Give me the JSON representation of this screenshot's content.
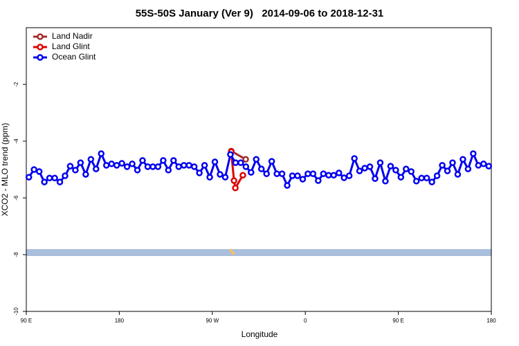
{
  "chart_data": {
    "type": "line",
    "title": "55S-50S January (Ver 9)   2014-09-06 to 2018-12-31",
    "x_label": "Longitude",
    "y_label": "XCO2 - MLO trend (ppm)",
    "xlim": [
      90,
      540
    ],
    "ylim": [
      -10,
      0
    ],
    "xticks": [
      {
        "value": 90,
        "label": "90 E"
      },
      180,
      {
        "value": 270,
        "label": "90 W"
      },
      {
        "value": 360,
        "label": "0"
      },
      {
        "value": 450,
        "label": "90 E"
      },
      {
        "value": 540,
        "label": "180"
      }
    ],
    "yticks": [
      -10,
      -8,
      -6,
      -4,
      -2
    ],
    "legend": "top-left",
    "series": [
      {
        "name": "Land Nadir",
        "color": "#a52a2a",
        "x": [
          288.3,
          302.3
        ],
        "values": [
          -4.35,
          -4.64
        ]
      },
      {
        "name": "Land Glint",
        "color": "#e00000",
        "x": [
          288.3,
          291,
          292.3,
          299.6
        ],
        "values": [
          -4.37,
          -5.39,
          -5.65,
          -5.2
        ]
      },
      {
        "name": "Ocean Glint",
        "color": "#0000ee",
        "x": [
          92.5,
          97.5,
          102.5,
          107.5,
          112.5,
          117.5,
          122.5,
          127.5,
          132.5,
          137.5,
          142.5,
          147.5,
          152.5,
          157.5,
          162.5,
          167.5,
          172.5,
          177.5,
          182.5,
          187.5,
          192.5,
          197.5,
          202.5,
          207.5,
          212.5,
          217.5,
          222.5,
          227.5,
          232.5,
          237.5,
          242.5,
          247.5,
          252.5,
          257.5,
          262.5,
          267.5,
          272.5,
          277.5,
          282.5,
          287.5,
          292.5,
          297.5,
          302.5,
          307.5,
          312.5,
          317.5,
          322.5,
          327.5,
          332.5,
          337.5,
          342.5,
          347.5,
          352.5,
          357.5,
          362.5,
          367.5,
          372.5,
          377.5,
          382.5,
          387.5,
          392.5,
          397.5,
          402.5,
          407.5,
          412.5,
          417.5,
          422.5,
          427.5,
          432.5,
          437.5,
          442.5,
          447.5,
          452.5,
          457.5,
          462.5,
          467.5,
          472.5,
          477.5,
          482.5,
          487.5,
          492.5,
          497.5,
          502.5,
          507.5,
          512.5,
          517.5,
          522.5,
          527.5,
          532.5,
          537.5
        ],
        "values": [
          -5.27,
          -5.0,
          -5.07,
          -5.44,
          -5.3,
          -5.3,
          -5.44,
          -5.22,
          -4.88,
          -5.02,
          -4.76,
          -5.17,
          -4.64,
          -4.98,
          -4.44,
          -4.85,
          -4.8,
          -4.85,
          -4.78,
          -4.9,
          -4.8,
          -5.02,
          -4.68,
          -4.9,
          -4.9,
          -4.9,
          -4.68,
          -5.02,
          -4.68,
          -4.9,
          -4.85,
          -4.85,
          -4.9,
          -5.12,
          -4.85,
          -5.27,
          -4.73,
          -5.17,
          -5.27,
          -4.47,
          -4.76,
          -4.76,
          -4.9,
          -5.1,
          -4.64,
          -4.98,
          -5.15,
          -4.71,
          -5.15,
          -5.15,
          -5.56,
          -5.22,
          -5.22,
          -5.34,
          -5.15,
          -5.15,
          -5.39,
          -5.15,
          -5.2,
          -5.2,
          -5.12,
          -5.29,
          -5.22,
          -4.61,
          -5.05,
          -4.95,
          -4.9,
          -5.32,
          -4.76,
          -5.41,
          -4.88,
          -5.02,
          -5.27,
          -4.98,
          -5.07,
          -5.41,
          -5.3,
          -5.3,
          -5.44,
          -5.22,
          -4.85,
          -5.05,
          -4.76,
          -5.17,
          -4.64,
          -4.98,
          -4.44,
          -4.85,
          -4.8,
          -4.88
        ]
      }
    ]
  }
}
